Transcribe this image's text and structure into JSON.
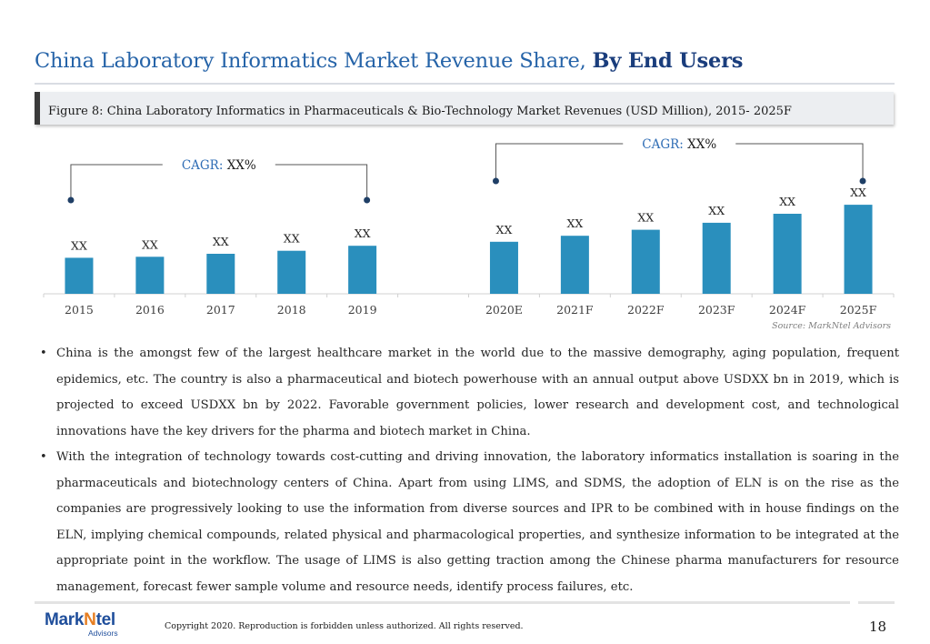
{
  "header": {
    "title_regular": "China Laboratory Informatics Market Revenue Share, ",
    "title_bold": "By End Users"
  },
  "figure": {
    "caption": "Figure 8: China Laboratory Informatics in Pharmaceuticals & Bio-Technology Market Revenues (USD Million), 2015- 2025F"
  },
  "chart_data": {
    "type": "bar",
    "categories": [
      "2015",
      "2016",
      "2017",
      "2018",
      "2019",
      "",
      "2020E",
      "2021F",
      "2022F",
      "2023F",
      "2024F",
      "2025F"
    ],
    "values": [
      36,
      37,
      40,
      43,
      48,
      null,
      52,
      58,
      64,
      71,
      80,
      89
    ],
    "data_labels": [
      "XX",
      "XX",
      "XX",
      "XX",
      "XX",
      "",
      "XX",
      "XX",
      "XX",
      "XX",
      "XX",
      "XX"
    ],
    "title": "",
    "xlabel": "",
    "ylabel": "",
    "bar_color": "#2a8fbd",
    "grid": false,
    "annotations": [
      {
        "prefix": "CAGR:",
        "value": "XX%",
        "from": "2015",
        "to": "2019"
      },
      {
        "prefix": "CAGR:",
        "value": "XX%",
        "from": "2020E",
        "to": "2025F"
      }
    ],
    "annotation_prefix_color": "#2f6db5"
  },
  "source": "Source: MarkNtel Advisors",
  "bullets": [
    "China is the amongst few of the largest healthcare market in the world due to the massive demography, aging population, frequent epidemics, etc. The country is also a pharmaceutical and biotech powerhouse with an annual output above USDXX bn in 2019, which is projected to exceed USDXX bn by 2022. Favorable government policies, lower research and development cost, and technological innovations have the key drivers for the pharma and biotech market in China.",
    "With the integration of technology towards cost-cutting and driving innovation, the laboratory informatics installation is soaring in the pharmaceuticals and biotechnology centers of China. Apart from using LIMS, and SDMS, the adoption of ELN is on the rise as the companies are progressively looking to use the information from diverse sources and IPR to be combined with in house findings on the ELN, implying chemical compounds, related physical and pharmacological properties, and synthesize information to be integrated at the appropriate point in the workflow. The usage of LIMS is also getting traction among the Chinese pharma manufacturers for resource management, forecast fewer sample volume and resource needs, identify process failures, etc."
  ],
  "footer": {
    "logo_main": "Mark",
    "logo_accent": "N",
    "logo_rest": "tel",
    "logo_sub": "Advisors",
    "copyright": "Copyright 2020. Reproduction is forbidden unless authorized. All rights reserved.",
    "page_number": "18"
  }
}
